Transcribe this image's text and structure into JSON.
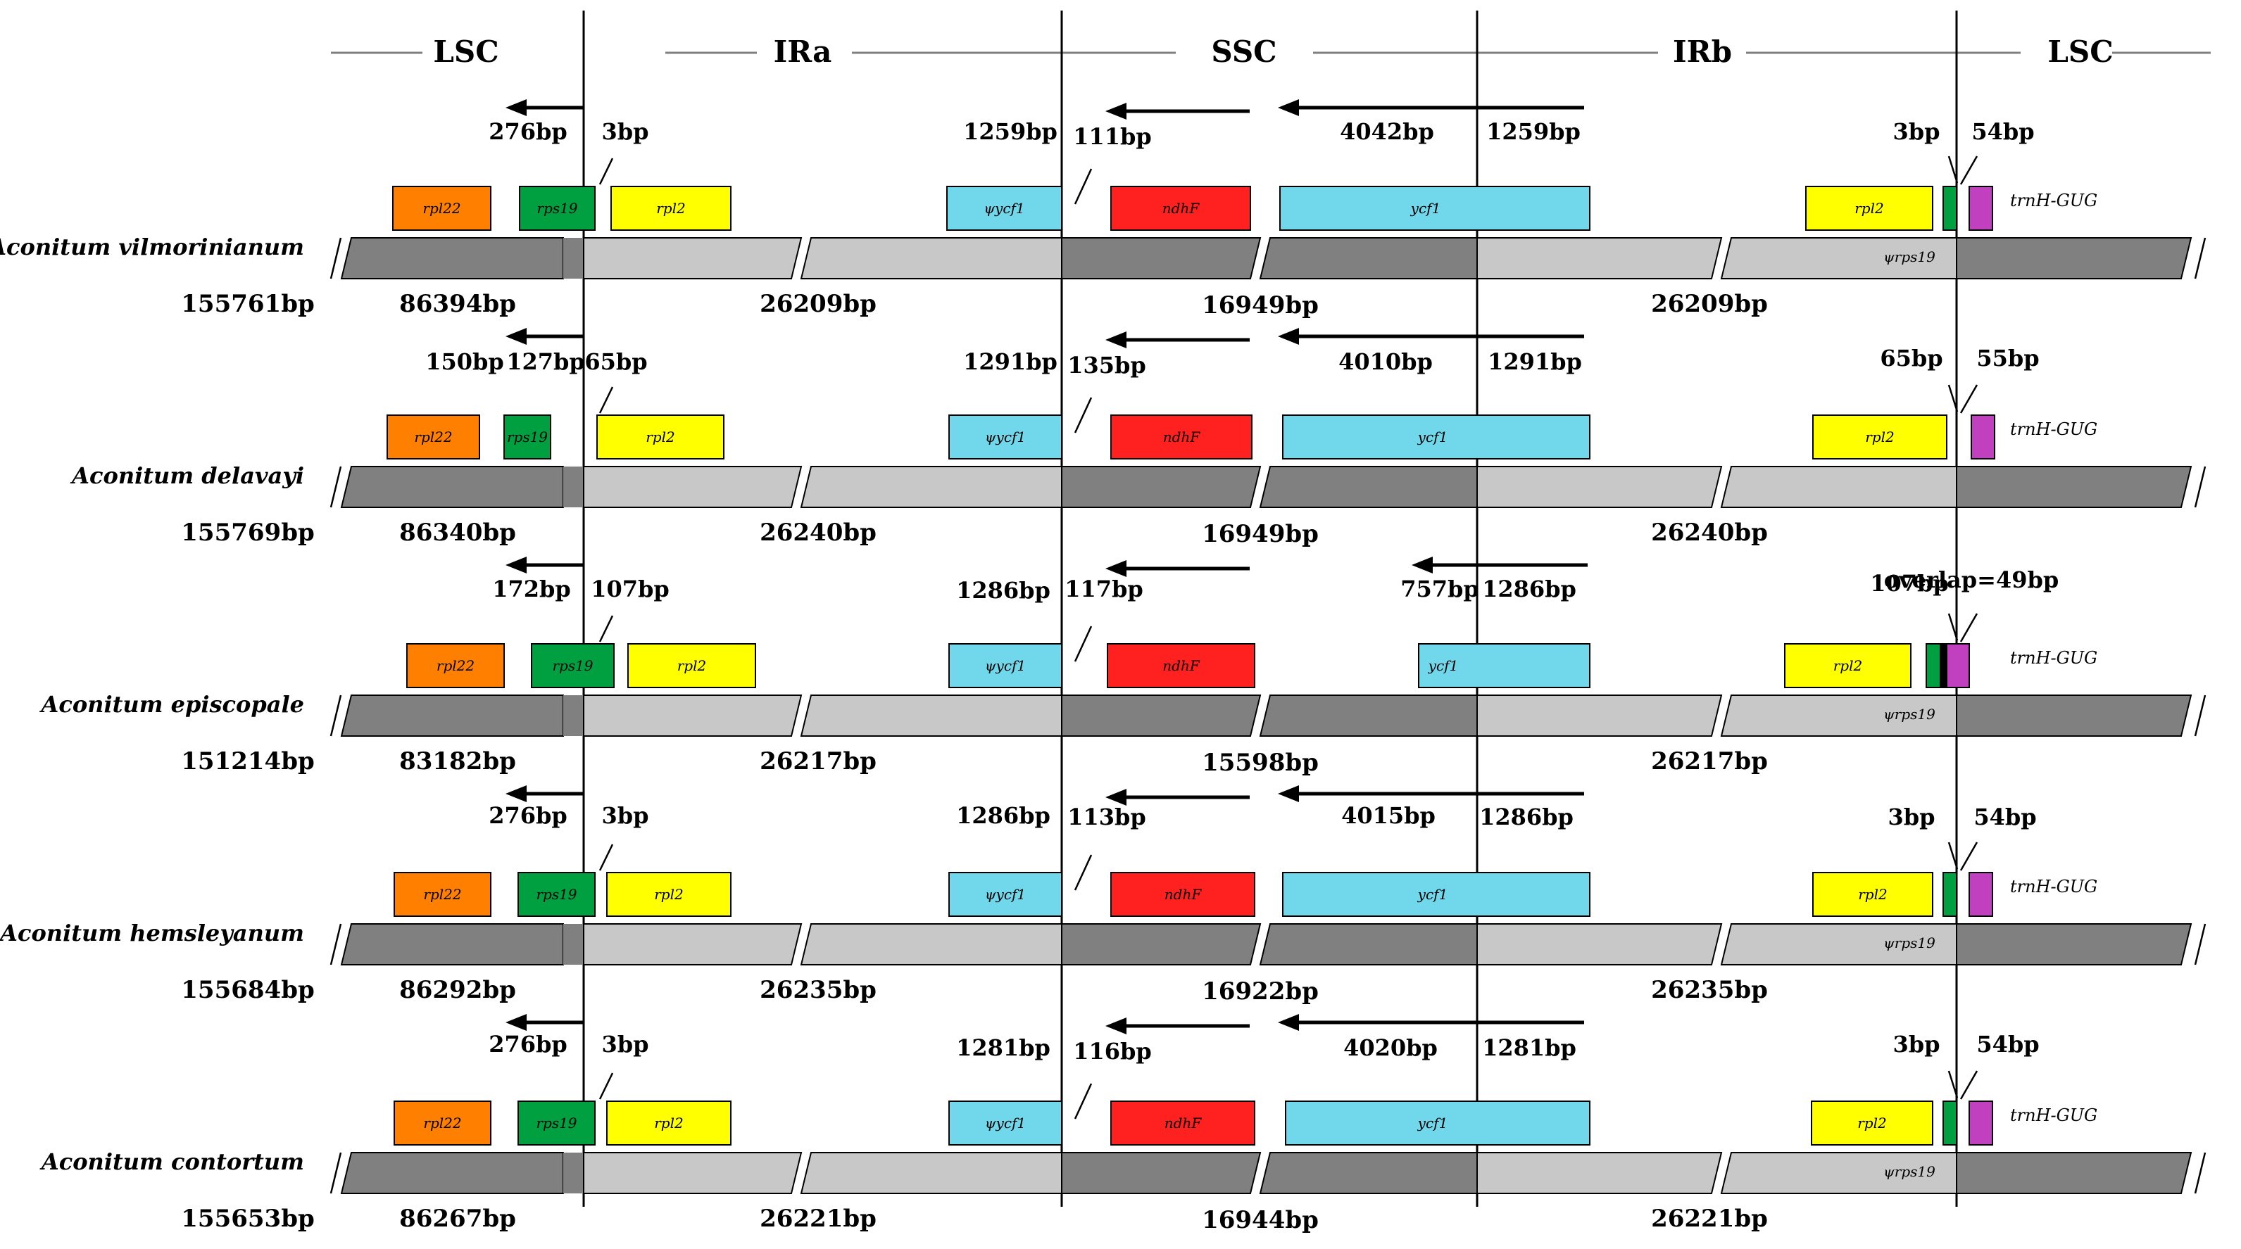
{
  "regions": [
    "LSC",
    "IRa",
    "SSC",
    "IRb",
    "LSC"
  ],
  "colors": {
    "lsc": "#808080",
    "ir": "#c8c8c8",
    "rpl22": "#ff8000",
    "rps19": "#00a040",
    "rpl2": "#ffff00",
    "ycf1": "#70d8ea",
    "ndhF": "#ff2020",
    "trnH": "#c040c0",
    "overlap": "#000000"
  },
  "gene_names": {
    "rpl22": "rpl22",
    "rps19": "rps19",
    "rpl2": "rpl2",
    "psi_ycf1": "ψycf1",
    "ndhF": "ndhF",
    "ycf1": "ycf1",
    "psi_rps19": "ψrps19",
    "trnH": "trnH-GUG"
  },
  "species": [
    {
      "name": "Aconitum vilmorinianum",
      "total": "155761bp",
      "lsc": "86394bp",
      "ira": "26209bp",
      "ssc": "16949bp",
      "irb": "26209bp",
      "annotations": [
        "276bp",
        "3bp",
        "1259bp",
        "111bp",
        "4042bp",
        "1259bp",
        "3bp",
        "54bp"
      ],
      "has_psi_rps19": true,
      "has_overlap": false
    },
    {
      "name": "Aconitum delavayi",
      "total": "155769bp",
      "lsc": "86340bp",
      "ira": "26240bp",
      "ssc": "16949bp",
      "irb": "26240bp",
      "annotations": [
        "150bp",
        "127bp",
        "65bp",
        "1291bp",
        "135bp",
        "4010bp",
        "1291bp",
        "65bp",
        "55bp"
      ],
      "has_psi_rps19": false,
      "has_overlap": false
    },
    {
      "name": "Aconitum episcopale",
      "total": "151214bp",
      "lsc": "83182bp",
      "ira": "26217bp",
      "ssc": "15598bp",
      "irb": "26217bp",
      "annotations": [
        "172bp",
        "107bp",
        "1286bp",
        "117bp",
        "757bp",
        "1286bp",
        "107bp",
        "overlap=49bp"
      ],
      "has_psi_rps19": true,
      "has_overlap": true
    },
    {
      "name": "Aconitum hemsleyanum",
      "total": "155684bp",
      "lsc": "86292bp",
      "ira": "26235bp",
      "ssc": "16922bp",
      "irb": "26235bp",
      "annotations": [
        "276bp",
        "3bp",
        "1286bp",
        "113bp",
        "4015bp",
        "1286bp",
        "3bp",
        "54bp"
      ],
      "has_psi_rps19": true,
      "has_overlap": false
    },
    {
      "name": "Aconitum contortum",
      "total": "155653bp",
      "lsc": "86267bp",
      "ira": "26221bp",
      "ssc": "16944bp",
      "irb": "26221bp",
      "annotations": [
        "276bp",
        "3bp",
        "1281bp",
        "116bp",
        "4020bp",
        "1281bp",
        "3bp",
        "54bp"
      ],
      "has_psi_rps19": true,
      "has_overlap": false
    }
  ]
}
